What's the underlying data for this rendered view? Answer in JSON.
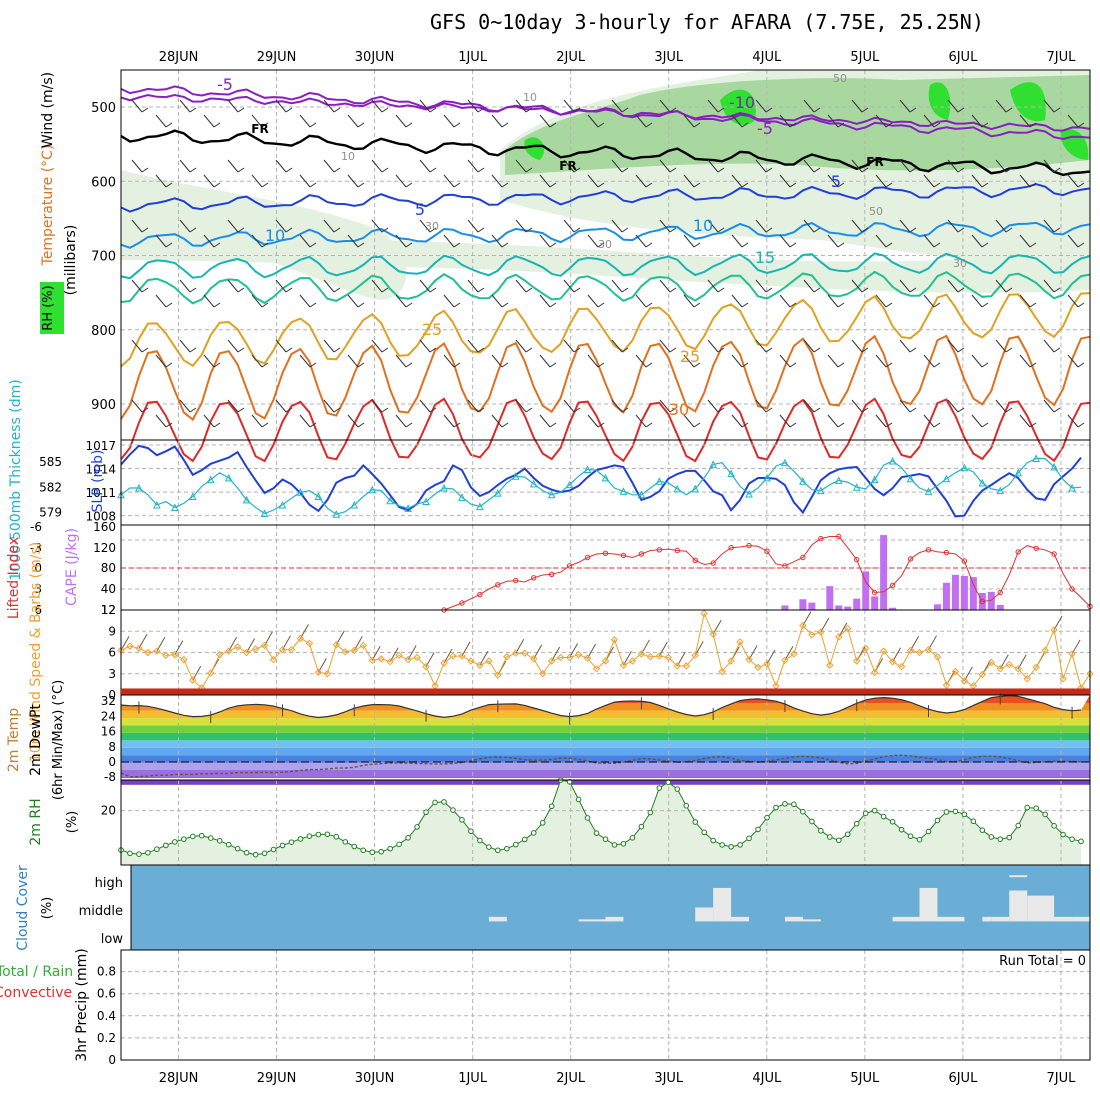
{
  "title": "GFS 0~10day 3-hourly for AFARA (7.75E, 25.25N)",
  "date_labels": [
    "28JUN",
    "29JUN",
    "30JUN",
    "1JUL",
    "2JUL",
    "3JUL",
    "4JUL",
    "5JUL",
    "6JUL",
    "7JUL"
  ],
  "colors": {
    "temp_purple": "#8a1fbf",
    "temp_blue": "#1f3fd8",
    "temp_lightblue": "#1a8ee6",
    "temp_teal": "#18b4b4",
    "temp_green": "#20c090",
    "temp_gold": "#e0a020",
    "temp_orange": "#e07020",
    "temp_red": "#e02828",
    "rh_light": "#e4f1e0",
    "rh_mid": "#a8d8a0",
    "rh_bright": "#30e030",
    "slp": "#1f3fd8",
    "thickness": "#20b4c8",
    "lifted_index": "#e03030",
    "cape": "#c070f0",
    "wind10m": "#f0a030",
    "rh2m": "#208020",
    "cloud_bg": "#6aaed6",
    "cloud_bar": "#e8e8e8"
  },
  "chart_data": [
    {
      "type": "line",
      "panel": "upper-air",
      "ylabel": [
        "Temperature (°C)",
        "Wind (m/s)",
        "RH (%)",
        "(millibars)"
      ],
      "y_ticks": [
        500,
        600,
        700,
        800,
        900
      ],
      "ylim": [
        1000,
        450
      ],
      "isotherm_labels": [
        "-5",
        "-10",
        "-5",
        "FR",
        "FR",
        "FR",
        "5",
        "5",
        "10",
        "10",
        "15",
        "25",
        "25",
        "30"
      ],
      "rh_labels": [
        "10",
        "10",
        "30",
        "30",
        "50",
        "50",
        "30"
      ]
    },
    {
      "type": "line",
      "panel": "pressure",
      "ylabel_left": "1000-500mb Thickness (dm)",
      "ylabel_right": "SLP (mb)",
      "left_ticks": [
        579,
        582,
        585
      ],
      "right_ticks": [
        1008,
        1011,
        1014,
        1017
      ],
      "slp_values": [
        1014.5,
        1015.8,
        1016.9,
        1016.6,
        1015.7,
        1016.2,
        1016.8,
        1015.1,
        1013.2,
        1013.8,
        1014.6,
        1015.0,
        1015.4,
        1016.1,
        1014.2,
        1012.5,
        1010.9,
        1011.5,
        1012.6,
        1012.0,
        1010.9,
        1009.4,
        1008.6,
        1010.0,
        1012.2,
        1012.8,
        1013.1,
        1014.4,
        1013.3,
        1012.1,
        1010.6,
        1009.1,
        1008.7,
        1009.5,
        1011.2,
        1011.9,
        1012.4,
        1014.4,
        1013.8,
        1011.6,
        1010.5,
        1011.0,
        1011.9,
        1012.7,
        1013.2,
        1014.0,
        1012.8,
        1011.8,
        1011.3,
        1011.0,
        1011.2,
        1011.8,
        1012.9,
        1013.8,
        1014.1,
        1014.4,
        1014.2,
        1012.2,
        1010.0,
        1010.4,
        1011.1,
        1012.7,
        1013.3,
        1013.7,
        1013.7,
        1012.5,
        1011.1,
        1010.6,
        1008.7,
        1010.0,
        1012.1,
        1012.8,
        1012.8,
        1012.7,
        1011.9,
        1009.7,
        1008.4,
        1010.4,
        1012.5,
        1013.4,
        1013.9,
        1014.1,
        1014.2,
        1012.8,
        1011.4,
        1010.6,
        1011.5,
        1012.9,
        1013.1,
        1013.3,
        1013.0,
        1011.4,
        1009.9,
        1007.9,
        1008.0,
        1009.9,
        1011.2,
        1011.9,
        1012.7,
        1013.4,
        1012.8,
        1011.3,
        1010.2,
        1010.0,
        1012.0,
        1013.0,
        1014.0,
        1015.4
      ],
      "thickness_values": [
        581.0,
        581.8,
        581.8,
        581.0,
        579.8,
        580.2,
        579.5,
        580.0,
        580.8,
        582.0,
        582.8,
        583.6,
        583.0,
        581.8,
        580.4,
        579.5,
        578.8,
        579.2,
        579.8,
        580.6,
        581.3,
        581.5,
        580.8,
        579.4,
        578.7,
        579.0,
        579.8,
        580.8,
        581.6,
        581.5,
        580.3,
        579.7,
        579.4,
        579.9,
        580.2,
        581.1,
        581.8,
        581.7,
        580.7,
        579.9,
        579.6,
        580.4,
        581.2,
        582.4,
        583.2,
        583.1,
        582.3,
        581.5,
        581.0,
        581.3,
        582.2,
        583.2,
        584.0,
        583.9,
        583.0,
        581.8,
        581.4,
        581.0,
        581.0,
        581.8,
        582.6,
        582.4,
        581.7,
        581.0,
        581.7,
        583.0,
        584.6,
        584.8,
        583.5,
        582.0,
        581.1,
        581.8,
        583.0,
        584.4,
        584.8,
        583.8,
        582.6,
        581.6,
        581.5,
        582.2,
        582.7,
        582.5,
        581.9,
        581.7,
        582.8,
        584.5,
        585.0,
        584.2,
        582.9,
        581.8,
        581.4,
        582.1,
        582.9,
        583.6,
        584.2,
        583.7,
        582.4,
        581.7,
        581.5,
        582.2,
        583.6,
        584.8,
        585.3,
        585.3,
        584.3,
        582.8,
        581.8,
        581.9
      ]
    },
    {
      "type": "bar",
      "panel": "stability",
      "ylabel_left": "Lifted Index",
      "ylabel_right": "CAPE (J/kg)",
      "left_ticks": [
        "-6",
        "-3",
        "0",
        "3",
        "6"
      ],
      "right_ticks": [
        "12",
        "40",
        "80",
        "120",
        "160"
      ],
      "li_start_index": 36,
      "lifted_index": [
        6.0,
        5.5,
        5.0,
        4.4,
        3.8,
        3.0,
        2.4,
        1.9,
        1.8,
        2.0,
        1.4,
        1.0,
        0.9,
        0.6,
        -0.3,
        -0.8,
        -1.5,
        -2.0,
        -2.1,
        -2.0,
        -1.8,
        -1.5,
        -2.0,
        -2.5,
        -2.6,
        -2.7,
        -2.5,
        -2.4,
        -1.1,
        -0.5,
        -0.7,
        -2.0,
        -2.9,
        -3.0,
        -3.2,
        -3.1,
        -2.4,
        -0.6,
        -0.3,
        -0.9,
        -1.5,
        -3.3,
        -4.2,
        -4.5,
        -4.5,
        -2.9,
        -1.2,
        2.0,
        3.5,
        3.4,
        2.5,
        1.1,
        -1.3,
        -2.2,
        -2.6,
        -2.3,
        -2.2,
        -2.0,
        -1.0,
        2.4,
        4.8,
        4.6,
        3.5,
        1.0,
        -2.3,
        -3.2,
        -2.8,
        -2.6,
        -2.0,
        0.8,
        3.0,
        4.2,
        5.5
      ],
      "cape_index": [
        74,
        76,
        77,
        79,
        80,
        81,
        82,
        83,
        84,
        85,
        86,
        91,
        92,
        93,
        94,
        95,
        96,
        97,
        98,
        99
      ],
      "cape_values": [
        20,
        31,
        25,
        54,
        20,
        18,
        32,
        80,
        36,
        144,
        16,
        22,
        60,
        74,
        72,
        70,
        42,
        44,
        21,
        8
      ]
    },
    {
      "type": "line",
      "panel": "10m-wind",
      "ylabel": "10m Wind Speed & Barbs (m/s)",
      "y_ticks": [
        0,
        3,
        6,
        9,
        12
      ],
      "values": [
        6.3,
        6.9,
        6.6,
        6.0,
        6.2,
        5.6,
        5.7,
        5.0,
        2.1,
        1.0,
        3.1,
        5.7,
        6.2,
        6.8,
        6.0,
        6.5,
        7.0,
        5.0,
        6.4,
        6.4,
        8.0,
        7.3,
        3.2,
        3.0,
        7.1,
        6.1,
        6.3,
        7.0,
        4.9,
        5.1,
        4.7,
        5.6,
        5.0,
        5.3,
        4.0,
        1.3,
        4.5,
        5.5,
        5.5,
        4.8,
        4.2,
        4.8,
        2.8,
        5.4,
        5.9,
        5.9,
        5.1,
        3.0,
        4.8,
        5.3,
        5.3,
        5.7,
        5.2,
        3.7,
        4.8,
        7.8,
        4.2,
        4.8,
        5.8,
        5.4,
        5.5,
        5.3,
        4.1,
        4.1,
        5.6,
        11.5,
        8.6,
        3.3,
        4.8,
        7.5,
        5.0,
        3.9,
        4.4,
        1.3,
        4.9,
        5.8,
        9.8,
        8.5,
        8.9,
        4.2,
        8.2,
        9.4,
        4.8,
        6.6,
        3.2,
        6.2,
        4.7,
        4.0,
        6.3,
        6.0,
        6.4,
        5.4,
        1.4,
        3.3,
        2.0,
        1.3,
        2.9,
        4.6,
        3.7,
        4.3,
        3.7,
        2.3,
        3.9,
        6.3,
        9.2,
        2.3,
        5.8,
        1.0,
        3.0
      ]
    },
    {
      "type": "area",
      "panel": "2m-temp",
      "ylabel": [
        "2m Temp",
        "2m DewPt",
        "(6hr Min/Max) (°C)"
      ],
      "y_ticks": [
        "32",
        "24",
        "16",
        "8",
        "0",
        "-8"
      ],
      "temp_values": [
        30.0,
        29.6,
        29.7,
        29.3,
        28.3,
        27.1,
        25.8,
        24.6,
        23.9,
        24.0,
        24.7,
        26.3,
        28.3,
        29.6,
        30.1,
        30.3,
        30.1,
        29.4,
        28.2,
        27.0,
        25.3,
        24.1,
        23.4,
        23.9,
        24.8,
        26.4,
        28.3,
        29.5,
        30.2,
        30.2,
        30.1,
        29.5,
        28.2,
        26.9,
        25.4,
        24.2,
        23.5,
        24.1,
        25.2,
        27.3,
        28.8,
        30.2,
        30.4,
        30.5,
        30.6,
        29.8,
        28.4,
        27.1,
        25.7,
        24.5,
        23.9,
        24.4,
        25.6,
        27.9,
        29.8,
        31.5,
        32.0,
        32.1,
        32.0,
        31.3,
        29.8,
        28.0,
        26.3,
        25.0,
        24.2,
        24.9,
        26.3,
        28.7,
        30.6,
        32.3,
        33.0,
        33.2,
        32.7,
        32.0,
        30.5,
        28.5,
        26.8,
        25.4,
        24.7,
        25.3,
        26.7,
        28.8,
        30.9,
        32.7,
        33.6,
        33.9,
        33.6,
        32.8,
        31.4,
        29.6,
        27.8,
        26.5,
        25.8,
        26.3,
        27.6,
        29.8,
        31.9,
        33.9,
        34.5,
        34.9,
        34.6,
        33.3,
        32.0,
        30.7,
        28.8,
        27.6,
        27.0,
        27.3
      ],
      "dewpt_values": [
        -5.8,
        -7.8,
        -7.7,
        -7.4,
        -7.0,
        -7.0,
        -6.5,
        -6.5,
        -6.5,
        -6.2,
        -6.2,
        -6.0,
        -6.0,
        -5.6,
        -5.6,
        -5.5,
        -5.4,
        -5.5,
        -5.4,
        -5.0,
        -4.4,
        -4.0,
        -4.0,
        -3.7,
        -3.2,
        -3.2,
        -2.8,
        -1.8,
        -1.2,
        -0.9,
        -0.6,
        -0.5,
        -0.6,
        -0.8,
        -0.9,
        -1.0,
        -1.0,
        -0.8,
        -0.3,
        0.7,
        1.7,
        2.4,
        2.6,
        2.4,
        1.9,
        1.2,
        0.9,
        1.0,
        1.3,
        2.1,
        2.0,
        1.4,
        0.6,
        -0.5,
        -0.7,
        -0.7,
        -0.1,
        0.9,
        1.8,
        1.7,
        1.0,
        0.5,
        -0.1,
        0.1,
        0.8,
        1.8,
        2.6,
        2.8,
        2.0,
        0.8,
        0.3,
        0.0,
        0.3,
        1.1,
        1.9,
        2.7,
        3.0,
        2.7,
        2.2,
        1.2,
        -0.1,
        -1.0,
        -0.8,
        0.6,
        1.6,
        2.8,
        3.4,
        3.6,
        3.2,
        2.5,
        2.0,
        1.3,
        0.2,
        0.2,
        1.3,
        2.4,
        3.0,
        3.1,
        2.7,
        1.8,
        0.7,
        -0.4,
        -0.2,
        0.1,
        0.4,
        0.4,
        0.3,
        0.1
      ]
    },
    {
      "type": "area",
      "panel": "2m-rh",
      "ylabel": "2m RH (%)",
      "y_ticks": [
        20
      ],
      "values": [
        5.5,
        4.3,
        4.0,
        4.5,
        5.8,
        7.2,
        8.5,
        9.5,
        10.5,
        10.8,
        9.9,
        8.9,
        7.5,
        6.0,
        4.5,
        3.8,
        4.3,
        5.7,
        7.2,
        8.4,
        9.6,
        10.6,
        11.2,
        11.3,
        10.4,
        8.5,
        6.8,
        5.4,
        4.7,
        4.9,
        6.0,
        7.6,
        10.0,
        14.0,
        19.4,
        23.0,
        23.2,
        20.2,
        16.6,
        12.4,
        9.0,
        6.6,
        5.4,
        6.0,
        7.5,
        9.4,
        11.8,
        15.5,
        21.6,
        31.2,
        30.6,
        24.1,
        17.3,
        11.7,
        9.5,
        7.4,
        7.8,
        10.0,
        14.1,
        19.3,
        28.3,
        30.4,
        27.9,
        21.8,
        15.8,
        12.0,
        9.0,
        7.4,
        6.7,
        7.4,
        9.8,
        13.1,
        17.4,
        21.1,
        22.5,
        22.3,
        19.6,
        16.0,
        12.6,
        10.3,
        9.1,
        11.3,
        15.2,
        19.0,
        20.0,
        17.8,
        15.9,
        13.0,
        10.6,
        9.3,
        12.3,
        16.4,
        19.5,
        19.7,
        18.6,
        16.1,
        12.8,
        10.3,
        9.5,
        10.1,
        14.5,
        21.1,
        20.9,
        18.6,
        14.4,
        11.2,
        9.5,
        8.7
      ]
    },
    {
      "type": "bar",
      "panel": "cloud-cover",
      "ylabel": "Cloud Cover (%)",
      "y_ticks": [
        "high",
        "middle",
        "low"
      ],
      "segments": [
        {
          "start": 41,
          "end": 43,
          "top": 0.61
        },
        {
          "start": 51,
          "end": 55,
          "top": 0.64
        },
        {
          "start": 54,
          "end": 56,
          "top": 0.61
        },
        {
          "start": 64,
          "end": 66,
          "top": 0.5
        },
        {
          "start": 66,
          "end": 68,
          "top": 0.27
        },
        {
          "start": 68,
          "end": 70,
          "top": 0.61
        },
        {
          "start": 74,
          "end": 76,
          "top": 0.61
        },
        {
          "start": 76,
          "end": 78,
          "top": 0.64
        },
        {
          "start": 86,
          "end": 89,
          "top": 0.61
        },
        {
          "start": 89,
          "end": 91,
          "top": 0.27
        },
        {
          "start": 91,
          "end": 94,
          "top": 0.61
        },
        {
          "start": 96,
          "end": 97,
          "top": 0.61
        },
        {
          "start": 97,
          "end": 99,
          "top": 0.61
        },
        {
          "start": 99,
          "end": 101,
          "top": 0.3
        },
        {
          "start": 101,
          "end": 104,
          "top": 0.36
        },
        {
          "start": 104,
          "end": 106,
          "top": 0.61
        },
        {
          "start": 106,
          "end": 108,
          "top": 0.61
        }
      ],
      "high_marks": [
        {
          "start": 99,
          "end": 101,
          "top": 0.12
        }
      ]
    },
    {
      "type": "bar",
      "panel": "precip",
      "ylabel": [
        "Total / Rain",
        "Convective",
        "3hr Precip (mm)"
      ],
      "y_ticks": [
        "0",
        "0.2",
        "0.4",
        "0.6",
        "0.8"
      ],
      "ylim": [
        0,
        0.9
      ],
      "values": [],
      "annotation": "Run Total = 0"
    }
  ]
}
